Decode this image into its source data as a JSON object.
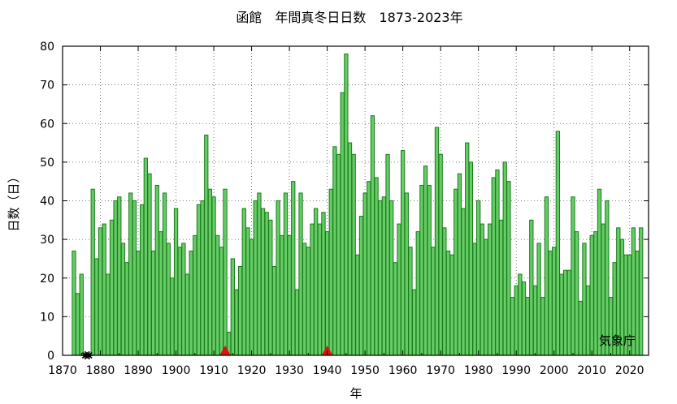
{
  "chart_data": {
    "type": "bar",
    "title": "函館　年間真冬日日数　1873-2023年",
    "xlabel": "年",
    "ylabel": "日数（日）",
    "credit": "気象庁",
    "x_range": [
      1870,
      2025
    ],
    "ylim": [
      0,
      80
    ],
    "x_ticks": [
      1870,
      1880,
      1890,
      1900,
      1910,
      1920,
      1930,
      1940,
      1950,
      1960,
      1970,
      1980,
      1990,
      2000,
      2010,
      2020
    ],
    "y_ticks": [
      0,
      10,
      20,
      30,
      40,
      50,
      60,
      70,
      80
    ],
    "grid": true,
    "bar_color": "#66cc66",
    "bar_edge_color": "#1a7a1a",
    "marker_color": "#dd1111",
    "years": [
      1873,
      1874,
      1875,
      1876,
      1877,
      1878,
      1879,
      1880,
      1881,
      1882,
      1883,
      1884,
      1885,
      1886,
      1887,
      1888,
      1889,
      1890,
      1891,
      1892,
      1893,
      1894,
      1895,
      1896,
      1897,
      1898,
      1899,
      1900,
      1901,
      1902,
      1903,
      1904,
      1905,
      1906,
      1907,
      1908,
      1909,
      1910,
      1911,
      1912,
      1913,
      1914,
      1915,
      1916,
      1917,
      1918,
      1919,
      1920,
      1921,
      1922,
      1923,
      1924,
      1925,
      1926,
      1927,
      1928,
      1929,
      1930,
      1931,
      1932,
      1933,
      1934,
      1935,
      1936,
      1937,
      1938,
      1939,
      1940,
      1941,
      1942,
      1943,
      1944,
      1945,
      1946,
      1947,
      1948,
      1949,
      1950,
      1951,
      1952,
      1953,
      1954,
      1955,
      1956,
      1957,
      1958,
      1959,
      1960,
      1961,
      1962,
      1963,
      1964,
      1965,
      1966,
      1967,
      1968,
      1969,
      1970,
      1971,
      1972,
      1973,
      1974,
      1975,
      1976,
      1977,
      1978,
      1979,
      1980,
      1981,
      1982,
      1983,
      1984,
      1985,
      1986,
      1987,
      1988,
      1989,
      1990,
      1991,
      1992,
      1993,
      1994,
      1995,
      1996,
      1997,
      1998,
      1999,
      2000,
      2001,
      2002,
      2003,
      2004,
      2005,
      2006,
      2007,
      2008,
      2009,
      2010,
      2011,
      2012,
      2013,
      2014,
      2015,
      2016,
      2017,
      2018,
      2019,
      2020,
      2021,
      2022,
      2023
    ],
    "values": [
      27,
      16,
      21,
      null,
      null,
      43,
      25,
      33,
      34,
      21,
      35,
      40,
      41,
      29,
      24,
      42,
      40,
      27,
      39,
      51,
      47,
      27,
      44,
      32,
      42,
      29,
      20,
      38,
      28,
      29,
      21,
      27,
      31,
      39,
      40,
      57,
      43,
      41,
      31,
      28,
      43,
      6,
      25,
      17,
      23,
      38,
      33,
      30,
      40,
      42,
      38,
      37,
      35,
      23,
      40,
      31,
      42,
      31,
      45,
      17,
      42,
      29,
      28,
      34,
      38,
      34,
      37,
      32,
      43,
      54,
      52,
      68,
      78,
      55,
      52,
      26,
      36,
      42,
      45,
      62,
      46,
      40,
      41,
      52,
      40,
      24,
      34,
      53,
      42,
      28,
      17,
      32,
      44,
      49,
      44,
      28,
      59,
      52,
      33,
      27,
      26,
      43,
      47,
      38,
      55,
      50,
      29,
      40,
      34,
      30,
      34,
      46,
      48,
      35,
      50,
      45,
      15,
      18,
      21,
      19,
      15,
      35,
      18,
      29,
      15,
      41,
      27,
      28,
      58,
      21,
      22,
      22,
      41,
      32,
      14,
      29,
      18,
      31,
      32,
      43,
      34,
      40,
      15,
      24,
      33,
      30,
      26,
      26,
      33,
      27,
      33
    ],
    "missing_years": [
      1876,
      1877
    ],
    "station_move_years": [
      1913,
      1940
    ]
  }
}
